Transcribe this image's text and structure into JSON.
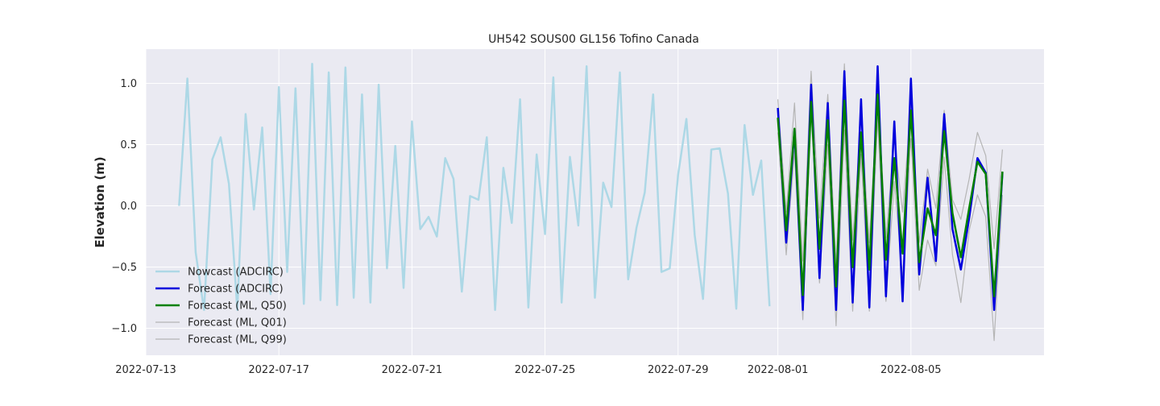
{
  "chart_data": {
    "type": "line",
    "title": "UH542 SOUS00 GL156 Tofino Canada",
    "ylabel": "Elevation (m)",
    "xlabel": "",
    "xlim": [
      "2022-07-13T00:00",
      "2022-08-09T00:00"
    ],
    "ylim": [
      -1.22,
      1.28
    ],
    "yticks": [
      1.0,
      0.5,
      0.0,
      -0.5,
      -1.0
    ],
    "ytick_labels": [
      "1.0",
      "0.5",
      "0.0",
      "−0.5",
      "−1.0"
    ],
    "xticks": [
      "2022-07-13",
      "2022-07-17",
      "2022-07-21",
      "2022-07-25",
      "2022-07-29",
      "2022-08-01",
      "2022-08-05"
    ],
    "xtick_labels": [
      "2022-07-13",
      "2022-07-17",
      "2022-07-21",
      "2022-07-25",
      "2022-07-29",
      "2022-08-01",
      "2022-08-05"
    ],
    "grid": true,
    "legend_position": "lower-left",
    "colors": {
      "background": "#eaeaf2",
      "grid": "#ffffff",
      "nowcast": "#add8e6",
      "forecast_adcirc": "#0000dd",
      "forecast_q50": "#008000",
      "forecast_q01": "#b5b5b5",
      "forecast_q99": "#b5b5b5"
    },
    "series": [
      {
        "name": "Nowcast (ADCIRC)",
        "color": "#add8e6",
        "width": 2.5,
        "x": [
          "2022-07-14T00:00",
          "2022-07-14T06:00",
          "2022-07-14T12:00",
          "2022-07-14T18:00",
          "2022-07-15T00:00",
          "2022-07-15T06:00",
          "2022-07-15T12:00",
          "2022-07-15T18:00",
          "2022-07-16T00:00",
          "2022-07-16T06:00",
          "2022-07-16T12:00",
          "2022-07-16T18:00",
          "2022-07-17T00:00",
          "2022-07-17T06:00",
          "2022-07-17T12:00",
          "2022-07-17T18:00",
          "2022-07-18T00:00",
          "2022-07-18T06:00",
          "2022-07-18T12:00",
          "2022-07-18T18:00",
          "2022-07-19T00:00",
          "2022-07-19T06:00",
          "2022-07-19T12:00",
          "2022-07-19T18:00",
          "2022-07-20T00:00",
          "2022-07-20T06:00",
          "2022-07-20T12:00",
          "2022-07-20T18:00",
          "2022-07-21T00:00",
          "2022-07-21T06:00",
          "2022-07-21T12:00",
          "2022-07-21T18:00",
          "2022-07-22T00:00",
          "2022-07-22T06:00",
          "2022-07-22T12:00",
          "2022-07-22T18:00",
          "2022-07-23T00:00",
          "2022-07-23T06:00",
          "2022-07-23T12:00",
          "2022-07-23T18:00",
          "2022-07-24T00:00",
          "2022-07-24T06:00",
          "2022-07-24T12:00",
          "2022-07-24T18:00",
          "2022-07-25T00:00",
          "2022-07-25T06:00",
          "2022-07-25T12:00",
          "2022-07-25T18:00",
          "2022-07-26T00:00",
          "2022-07-26T06:00",
          "2022-07-26T12:00",
          "2022-07-26T18:00",
          "2022-07-27T00:00",
          "2022-07-27T06:00",
          "2022-07-27T12:00",
          "2022-07-27T18:00",
          "2022-07-28T00:00",
          "2022-07-28T06:00",
          "2022-07-28T12:00",
          "2022-07-28T18:00",
          "2022-07-29T00:00",
          "2022-07-29T06:00",
          "2022-07-29T12:00",
          "2022-07-29T18:00",
          "2022-07-30T00:00",
          "2022-07-30T06:00",
          "2022-07-30T12:00",
          "2022-07-30T18:00",
          "2022-07-31T00:00",
          "2022-07-31T06:00",
          "2022-07-31T12:00",
          "2022-07-31T18:00"
        ],
        "y": [
          0.0,
          1.04,
          -0.38,
          -0.85,
          0.38,
          0.56,
          0.18,
          -0.85,
          0.75,
          -0.03,
          0.64,
          -0.72,
          0.97,
          -0.54,
          0.96,
          -0.8,
          1.16,
          -0.77,
          1.09,
          -0.81,
          1.13,
          -0.75,
          0.91,
          -0.79,
          0.99,
          -0.51,
          0.49,
          -0.67,
          0.69,
          -0.19,
          -0.09,
          -0.25,
          0.39,
          0.22,
          -0.7,
          0.08,
          0.05,
          0.56,
          -0.85,
          0.31,
          -0.14,
          0.87,
          -0.83,
          0.42,
          -0.23,
          1.05,
          -0.79,
          0.4,
          -0.16,
          1.14,
          -0.75,
          0.19,
          -0.01,
          1.09,
          -0.6,
          -0.18,
          0.11,
          0.91,
          -0.54,
          -0.51,
          0.25,
          0.71,
          -0.24,
          -0.76,
          0.46,
          0.47,
          0.1,
          -0.84,
          0.66,
          0.09,
          0.37,
          -0.82
        ]
      },
      {
        "name": "Forecast (ML, Q01)",
        "color": "#b5b5b5",
        "width": 1.2,
        "x": [
          "2022-08-01T00:00",
          "2022-08-01T06:00",
          "2022-08-01T12:00",
          "2022-08-01T18:00",
          "2022-08-02T00:00",
          "2022-08-02T06:00",
          "2022-08-02T12:00",
          "2022-08-02T18:00",
          "2022-08-03T00:00",
          "2022-08-03T06:00",
          "2022-08-03T12:00",
          "2022-08-03T18:00",
          "2022-08-04T00:00",
          "2022-08-04T06:00",
          "2022-08-04T12:00",
          "2022-08-04T18:00",
          "2022-08-05T00:00",
          "2022-08-05T06:00",
          "2022-08-05T12:00",
          "2022-08-05T18:00",
          "2022-08-06T00:00",
          "2022-08-06T06:00",
          "2022-08-06T12:00",
          "2022-08-06T18:00",
          "2022-08-07T00:00",
          "2022-08-07T06:00",
          "2022-08-07T12:00",
          "2022-08-07T18:00"
        ],
        "y": [
          0.6,
          -0.4,
          0.45,
          -0.93,
          0.8,
          -0.63,
          0.5,
          -0.98,
          0.62,
          -0.86,
          0.42,
          -0.86,
          0.72,
          -0.78,
          0.2,
          -0.6,
          0.55,
          -0.69,
          -0.28,
          -0.49,
          0.4,
          -0.4,
          -0.79,
          -0.2,
          0.09,
          -0.09,
          -1.1,
          0.09
        ]
      },
      {
        "name": "Forecast (ML, Q99)",
        "color": "#b5b5b5",
        "width": 1.2,
        "x": [
          "2022-08-01T00:00",
          "2022-08-01T06:00",
          "2022-08-01T12:00",
          "2022-08-01T18:00",
          "2022-08-02T00:00",
          "2022-08-02T06:00",
          "2022-08-02T12:00",
          "2022-08-02T18:00",
          "2022-08-03T00:00",
          "2022-08-03T06:00",
          "2022-08-03T12:00",
          "2022-08-03T18:00",
          "2022-08-04T00:00",
          "2022-08-04T06:00",
          "2022-08-04T12:00",
          "2022-08-04T18:00",
          "2022-08-05T00:00",
          "2022-08-05T06:00",
          "2022-08-05T12:00",
          "2022-08-05T18:00",
          "2022-08-06T00:00",
          "2022-08-06T06:00",
          "2022-08-06T12:00",
          "2022-08-06T18:00",
          "2022-08-07T00:00",
          "2022-08-07T06:00",
          "2022-08-07T12:00",
          "2022-08-07T18:00"
        ],
        "y": [
          0.87,
          -0.05,
          0.84,
          -0.45,
          1.1,
          -0.1,
          0.91,
          -0.48,
          1.16,
          -0.28,
          0.72,
          -0.3,
          0.95,
          -0.26,
          0.55,
          -0.05,
          0.82,
          -0.3,
          0.3,
          -0.02,
          0.78,
          0.05,
          -0.11,
          0.22,
          0.6,
          0.41,
          -0.35,
          0.46
        ]
      },
      {
        "name": "Forecast (ADCIRC)",
        "color": "#0000dd",
        "width": 2.5,
        "x": [
          "2022-08-01T00:00",
          "2022-08-01T06:00",
          "2022-08-01T12:00",
          "2022-08-01T18:00",
          "2022-08-02T00:00",
          "2022-08-02T06:00",
          "2022-08-02T12:00",
          "2022-08-02T18:00",
          "2022-08-03T00:00",
          "2022-08-03T06:00",
          "2022-08-03T12:00",
          "2022-08-03T18:00",
          "2022-08-04T00:00",
          "2022-08-04T06:00",
          "2022-08-04T12:00",
          "2022-08-04T18:00",
          "2022-08-05T00:00",
          "2022-08-05T06:00",
          "2022-08-05T12:00",
          "2022-08-05T18:00",
          "2022-08-06T00:00",
          "2022-08-06T06:00",
          "2022-08-06T12:00",
          "2022-08-06T18:00",
          "2022-08-07T00:00",
          "2022-08-07T06:00",
          "2022-08-07T12:00",
          "2022-08-07T18:00"
        ],
        "y": [
          0.8,
          -0.3,
          0.62,
          -0.85,
          0.99,
          -0.59,
          0.84,
          -0.85,
          1.1,
          -0.79,
          0.87,
          -0.83,
          1.14,
          -0.74,
          0.69,
          -0.78,
          1.04,
          -0.56,
          0.23,
          -0.45,
          0.75,
          -0.19,
          -0.52,
          -0.1,
          0.39,
          0.27,
          -0.85,
          0.27
        ]
      },
      {
        "name": "Forecast (ML, Q50)",
        "color": "#008000",
        "width": 2.5,
        "x": [
          "2022-08-01T00:00",
          "2022-08-01T06:00",
          "2022-08-01T12:00",
          "2022-08-01T18:00",
          "2022-08-02T00:00",
          "2022-08-02T06:00",
          "2022-08-02T12:00",
          "2022-08-02T18:00",
          "2022-08-03T00:00",
          "2022-08-03T06:00",
          "2022-08-03T12:00",
          "2022-08-03T18:00",
          "2022-08-04T00:00",
          "2022-08-04T06:00",
          "2022-08-04T12:00",
          "2022-08-04T18:00",
          "2022-08-05T00:00",
          "2022-08-05T06:00",
          "2022-08-05T12:00",
          "2022-08-05T18:00",
          "2022-08-06T00:00",
          "2022-08-06T06:00",
          "2022-08-06T12:00",
          "2022-08-06T18:00",
          "2022-08-07T00:00",
          "2022-08-07T06:00",
          "2022-08-07T12:00",
          "2022-08-07T18:00"
        ],
        "y": [
          0.72,
          -0.2,
          0.63,
          -0.73,
          0.85,
          -0.35,
          0.7,
          -0.66,
          0.86,
          -0.5,
          0.6,
          -0.52,
          0.91,
          -0.44,
          0.39,
          -0.39,
          0.78,
          -0.46,
          -0.02,
          -0.24,
          0.61,
          -0.06,
          -0.42,
          -0.02,
          0.36,
          0.26,
          -0.74,
          0.28
        ]
      }
    ],
    "legend": [
      {
        "label": "Nowcast (ADCIRC)",
        "color": "#add8e6",
        "width": 2.5
      },
      {
        "label": "Forecast (ADCIRC)",
        "color": "#0000dd",
        "width": 2.5
      },
      {
        "label": "Forecast (ML, Q50)",
        "color": "#008000",
        "width": 2.5
      },
      {
        "label": "Forecast (ML, Q01)",
        "color": "#b5b5b5",
        "width": 1.2
      },
      {
        "label": "Forecast (ML, Q99)",
        "color": "#b5b5b5",
        "width": 1.2
      }
    ]
  }
}
